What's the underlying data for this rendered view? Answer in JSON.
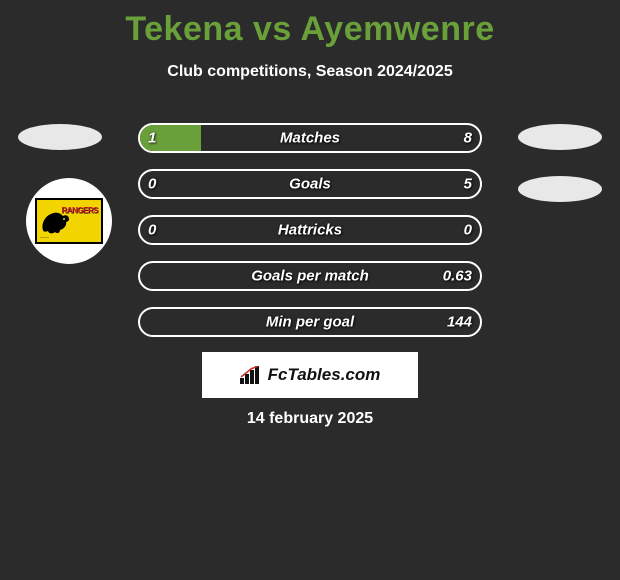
{
  "title_text": "Tekena vs Ayemwenre",
  "title_color": "#6aa03a",
  "subtitle": "Club competitions, Season 2024/2025",
  "background_color": "#2b2b2b",
  "badge": {
    "bg": "#f2d400",
    "label": "RANGERS",
    "label_color": "#d1202b"
  },
  "bars": {
    "track_width": 344,
    "track_height": 30,
    "border_color": "#ffffff",
    "fill_color": "#6aa03a",
    "rows": [
      {
        "label": "Matches",
        "left": "1",
        "right": "8",
        "left_fill_pct": 18,
        "right_fill_pct": 0
      },
      {
        "label": "Goals",
        "left": "0",
        "right": "5",
        "left_fill_pct": 0,
        "right_fill_pct": 0
      },
      {
        "label": "Hattricks",
        "left": "0",
        "right": "0",
        "left_fill_pct": 0,
        "right_fill_pct": 0
      },
      {
        "label": "Goals per match",
        "left": "",
        "right": "0.63",
        "left_fill_pct": 0,
        "right_fill_pct": 0
      },
      {
        "label": "Min per goal",
        "left": "",
        "right": "144",
        "left_fill_pct": 0,
        "right_fill_pct": 0
      }
    ]
  },
  "brand": "FcTables.com",
  "date": "14 february 2025"
}
